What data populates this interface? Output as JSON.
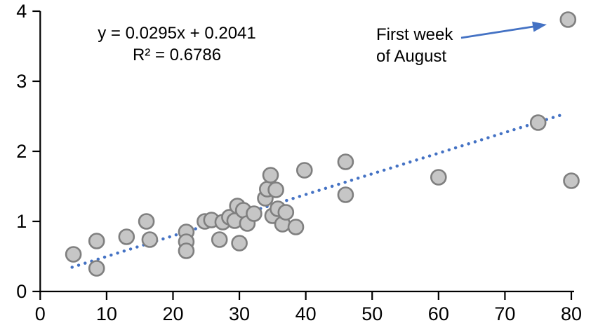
{
  "chart_data": {
    "type": "scatter",
    "title": "",
    "xlabel": "",
    "ylabel": "",
    "x_axis": {
      "min": 0,
      "max": 80,
      "ticks": [
        0,
        10,
        20,
        30,
        40,
        50,
        60,
        70,
        80
      ]
    },
    "y_axis": {
      "min": 0,
      "max": 4,
      "ticks": [
        0,
        1,
        2,
        3,
        4
      ]
    },
    "grid": false,
    "legend": false,
    "marker": {
      "fill": "#C6C6C6",
      "stroke": "#7F7F7F"
    },
    "points": [
      [
        5,
        0.53
      ],
      [
        8.5,
        0.72
      ],
      [
        8.5,
        0.33
      ],
      [
        13,
        0.78
      ],
      [
        16,
        1.0
      ],
      [
        16.5,
        0.74
      ],
      [
        22,
        0.85
      ],
      [
        22,
        0.71
      ],
      [
        22,
        0.58
      ],
      [
        24.8,
        1.0
      ],
      [
        25.8,
        1.02
      ],
      [
        27,
        0.74
      ],
      [
        27.5,
        0.99
      ],
      [
        28.5,
        1.06
      ],
      [
        29.3,
        1.01
      ],
      [
        29.7,
        1.22
      ],
      [
        30,
        0.69
      ],
      [
        30.6,
        1.16
      ],
      [
        31.2,
        0.97
      ],
      [
        32.2,
        1.11
      ],
      [
        33.9,
        1.33
      ],
      [
        34.2,
        1.46
      ],
      [
        35.5,
        1.45
      ],
      [
        34.7,
        1.66
      ],
      [
        35,
        1.08
      ],
      [
        35.8,
        1.18
      ],
      [
        36.5,
        0.96
      ],
      [
        37,
        1.13
      ],
      [
        38.5,
        0.92
      ],
      [
        39.8,
        1.73
      ],
      [
        46,
        1.85
      ],
      [
        46,
        1.38
      ],
      [
        60,
        1.63
      ],
      [
        75,
        2.41
      ],
      [
        79.5,
        3.88
      ],
      [
        80,
        1.58
      ]
    ],
    "trendline": {
      "slope": 0.0295,
      "intercept": 0.2041,
      "x_start": 4.8,
      "x_end": 79.2,
      "style": "dotted",
      "color": "#4472C4"
    },
    "equation": {
      "line1": "y = 0.0295x + 0.2041",
      "line2": "R² = 0.6786"
    },
    "annotation": {
      "line1": "First week",
      "line2": "of August",
      "arrow_color": "#4472C4",
      "arrow_from": [
        63.4,
        3.62
      ],
      "arrow_to": [
        76.3,
        3.81
      ],
      "points_to": [
        79.5,
        3.88
      ]
    },
    "axis_color": "#000000"
  }
}
